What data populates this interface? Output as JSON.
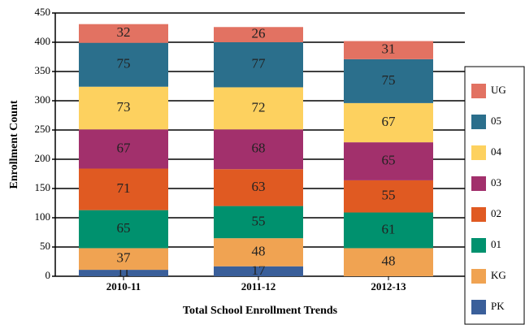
{
  "chart_data": {
    "type": "stacked_bar",
    "x_label": "Total School Enrollment Trends",
    "y_label": "Enrollment Count",
    "categories": [
      "2010-11",
      "2011-12",
      "2012-13"
    ],
    "series": [
      {
        "name": "PK",
        "color": "#3a5f9a",
        "values": [
          11,
          17,
          null
        ]
      },
      {
        "name": "KG",
        "color": "#f0a352",
        "values": [
          37,
          48,
          48
        ]
      },
      {
        "name": "01",
        "color": "#00916e",
        "values": [
          65,
          55,
          61
        ]
      },
      {
        "name": "02",
        "color": "#e05a22",
        "values": [
          71,
          63,
          55
        ]
      },
      {
        "name": "03",
        "color": "#a2306c",
        "values": [
          67,
          68,
          65
        ]
      },
      {
        "name": "04",
        "color": "#fdd15f",
        "values": [
          73,
          72,
          67
        ]
      },
      {
        "name": "05",
        "color": "#2b6f8c",
        "values": [
          75,
          77,
          75
        ]
      },
      {
        "name": "UG",
        "color": "#e27262",
        "values": [
          32,
          26,
          31
        ]
      }
    ],
    "ylim": [
      0,
      450
    ],
    "yticks": [
      0,
      50,
      100,
      150,
      200,
      250,
      300,
      350,
      400,
      450
    ],
    "grid": true,
    "legend": "right"
  }
}
